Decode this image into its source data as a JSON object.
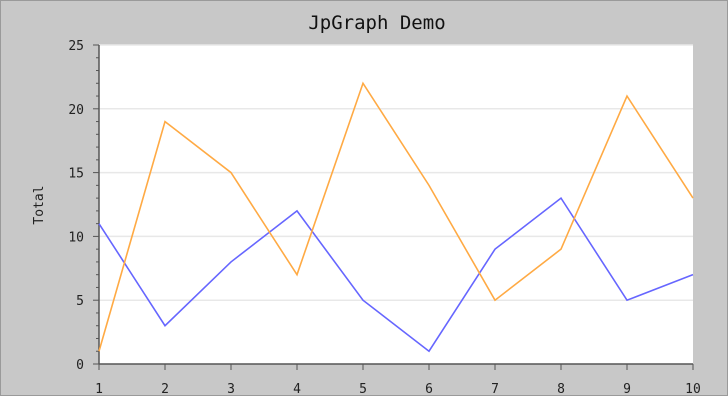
{
  "chart_data": {
    "type": "line",
    "title": "JpGraph Demo",
    "xlabel": "",
    "ylabel": "Total",
    "x": [
      1,
      2,
      3,
      4,
      5,
      6,
      7,
      8,
      9,
      10
    ],
    "xlim": [
      1,
      10
    ],
    "ylim": [
      0,
      25
    ],
    "yticks": [
      0,
      5,
      10,
      15,
      20,
      25
    ],
    "grid": true,
    "series": [
      {
        "values": [
          11,
          3,
          8,
          12,
          5,
          1,
          9,
          13,
          5,
          7
        ],
        "color": "#6666ff"
      },
      {
        "values": [
          1,
          19,
          15,
          7,
          22,
          14,
          5,
          9,
          21,
          13
        ],
        "color": "#ffaa44"
      }
    ],
    "colors": {
      "plot_background": "#ffffff",
      "frame_background": "#c8c8c8",
      "grid": "#e8e8e8",
      "axis": "#555555"
    }
  }
}
